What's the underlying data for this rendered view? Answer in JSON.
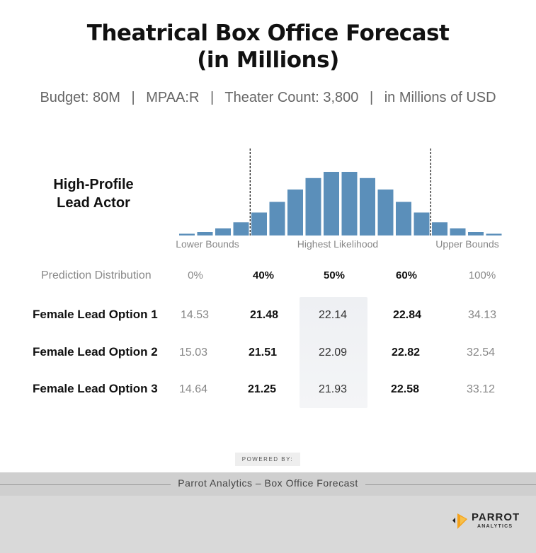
{
  "title": [
    "Theatrical Box Office Forecast",
    "(in Millions)"
  ],
  "subtitle": {
    "budget": "Budget: 80M",
    "mpaa": "MPAA:R",
    "theater": "Theater Count: 3,800",
    "unit": "in Millions of USD",
    "separator": "|"
  },
  "row_heading": [
    "High-Profile",
    "Lead Actor"
  ],
  "chart_data": {
    "type": "bar",
    "title": "",
    "values": [
      2,
      4,
      8,
      15,
      26,
      38,
      52,
      65,
      72,
      72,
      65,
      52,
      38,
      26,
      15,
      8,
      4,
      2
    ],
    "ylim": [
      0,
      80
    ],
    "grid": false,
    "band_labels": [
      "Lower Bounds",
      "Highest Likelihood",
      "Upper Bounds"
    ],
    "bound_markers_after_bar": [
      3,
      13
    ],
    "bar_color": "#5b8fba"
  },
  "table": {
    "header_label": "Prediction Distribution",
    "columns": [
      "0%",
      "40%",
      "50%",
      "60%",
      "100%"
    ],
    "rows": [
      {
        "label": "Female Lead Option 1",
        "values": [
          "14.53",
          "21.48",
          "22.14",
          "22.84",
          "34.13"
        ]
      },
      {
        "label": "Female Lead Option 2",
        "values": [
          "15.03",
          "21.51",
          "22.09",
          "22.82",
          "32.54"
        ]
      },
      {
        "label": "Female Lead Option 3",
        "values": [
          "14.64",
          "21.25",
          "21.93",
          "22.58",
          "33.12"
        ]
      }
    ]
  },
  "powered_by": "POWERED BY:",
  "footer_text": "Parrot Analytics – Box Office Forecast",
  "logo": {
    "word": "PARROT",
    "sub": "ANALYTICS",
    "icon": "parrot-logo-icon"
  },
  "colors": {
    "bar": "#5b8fba",
    "highlight": "#f0f1f4",
    "footer": "#d9d9d9"
  }
}
